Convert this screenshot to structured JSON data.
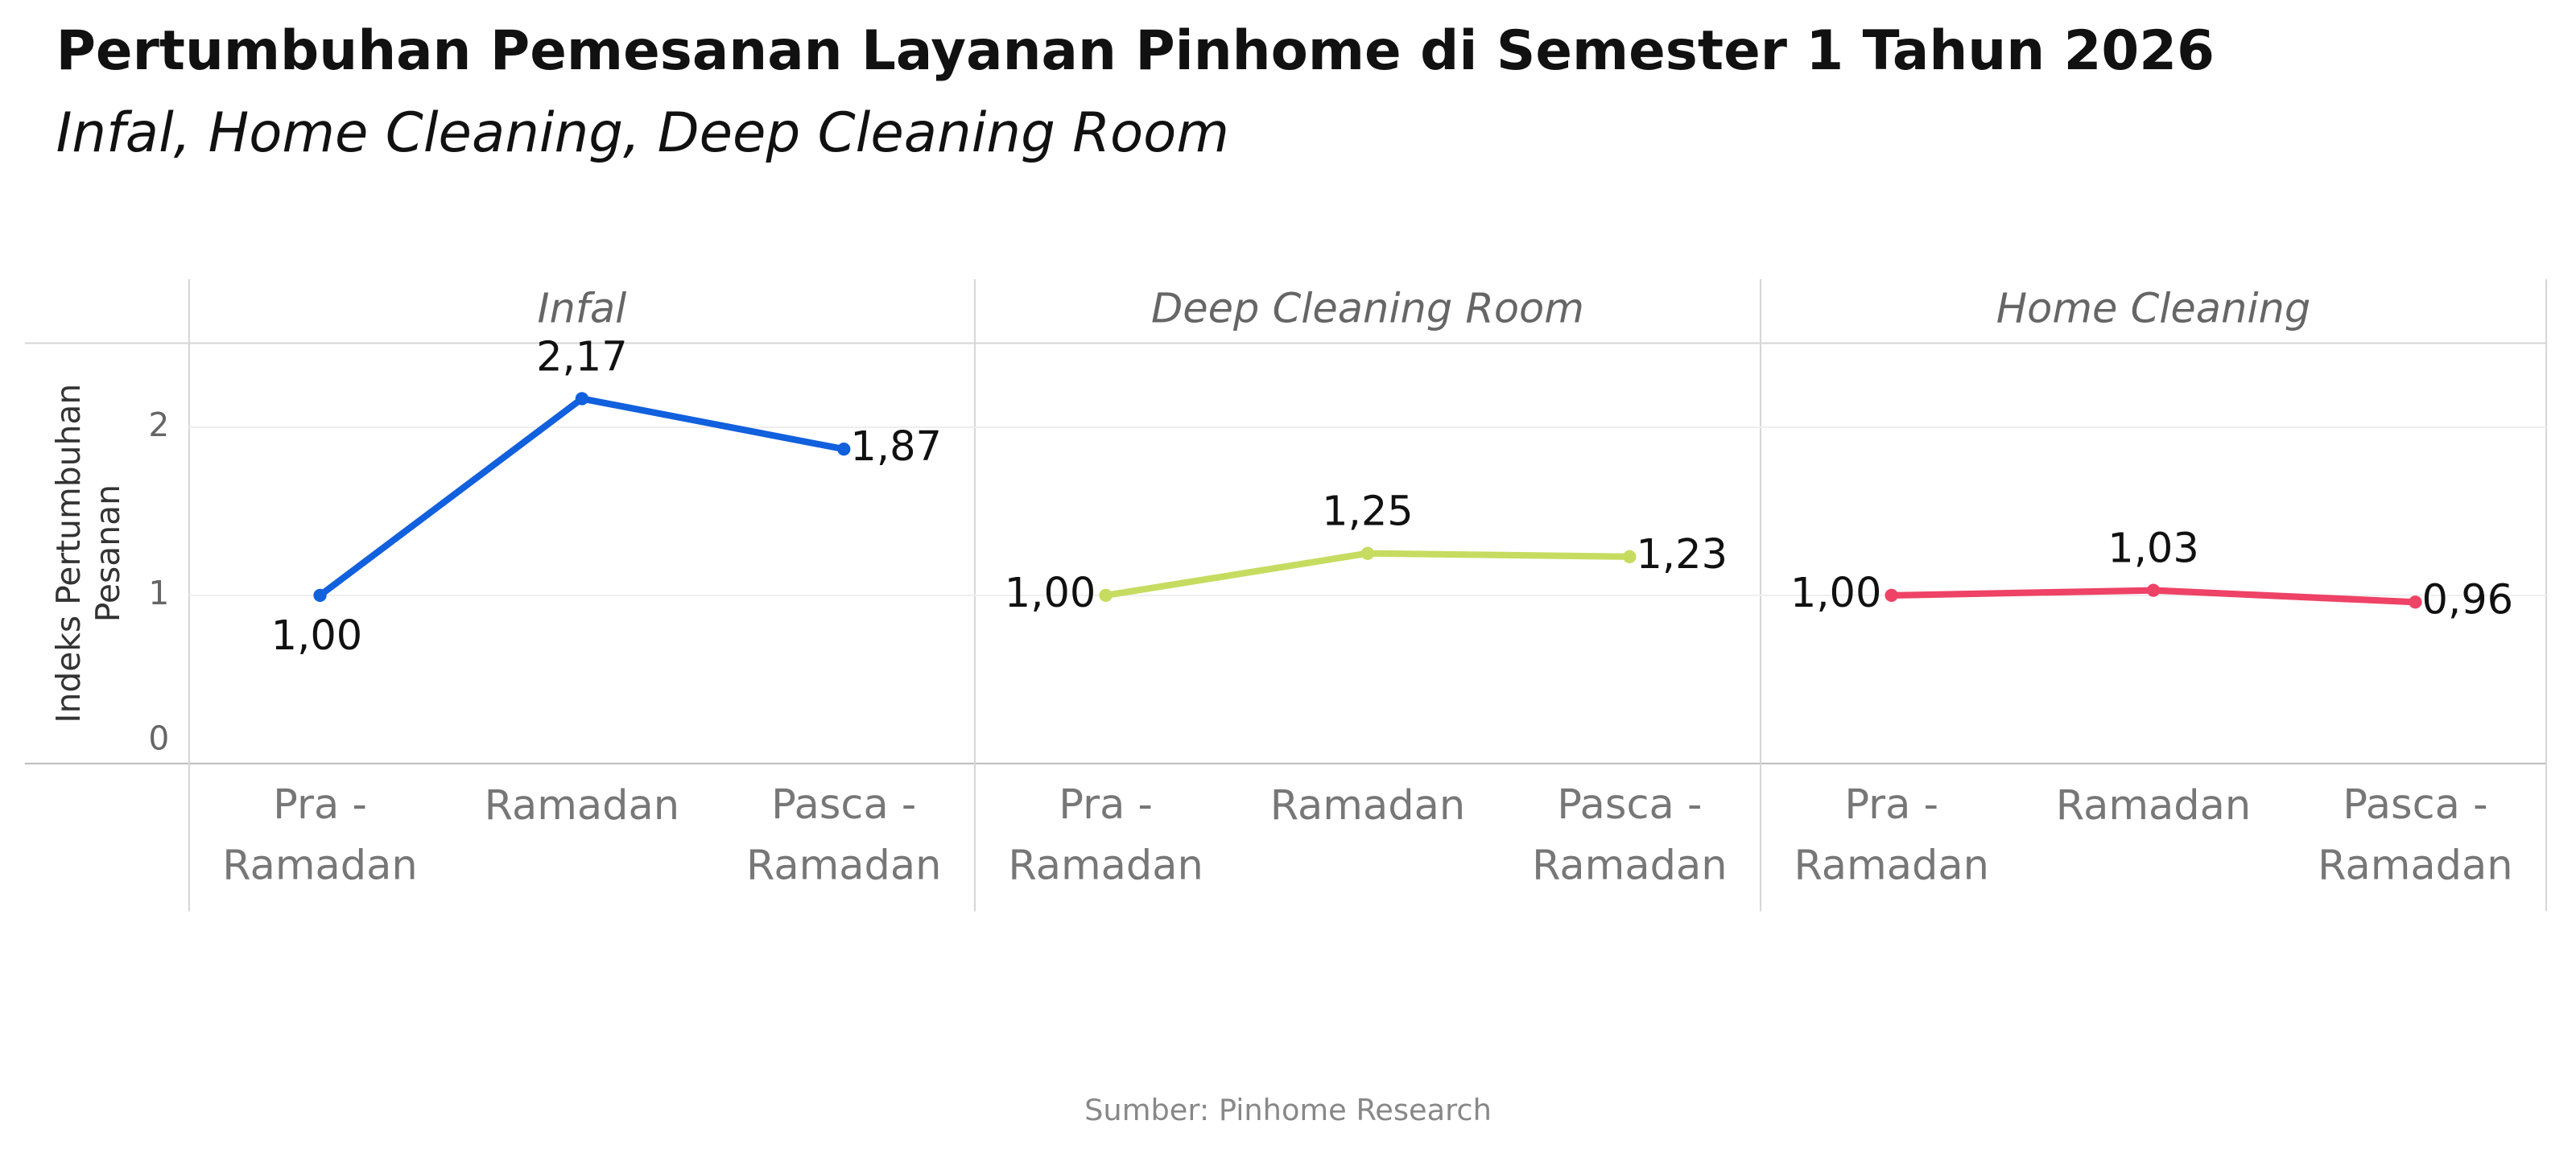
{
  "chart_data": {
    "type": "line",
    "title": "Pertumbuhan Pemesanan Layanan Pinhome di Semester 1 Tahun 2026",
    "subtitle": "Infal, Home Cleaning, Deep Cleaning Room",
    "y_label": "Indeks Pertumbuhan Pesanan",
    "categories": [
      "Pra - Ramadan",
      "Ramadan",
      "Pasca - Ramadan"
    ],
    "series": [
      {
        "name": "Infal",
        "color": "#1160dd",
        "values": [
          1.0,
          2.17,
          1.87
        ],
        "value_labels": [
          "1,00",
          "2,17",
          "1,87"
        ]
      },
      {
        "name": "Deep Cleaning Room",
        "color": "#c6dc60",
        "values": [
          1.0,
          1.25,
          1.23
        ],
        "value_labels": [
          "1,00",
          "1,25",
          "1,23"
        ]
      },
      {
        "name": "Home Cleaning",
        "color": "#ee4266",
        "values": [
          1.0,
          1.03,
          0.96
        ],
        "value_labels": [
          "1,00",
          "1,03",
          "0,96"
        ]
      }
    ],
    "ylim": [
      0,
      2.5
    ],
    "yticks": [
      0,
      1,
      2
    ],
    "grid": true,
    "source": "Sumber: Pinhome Research"
  }
}
